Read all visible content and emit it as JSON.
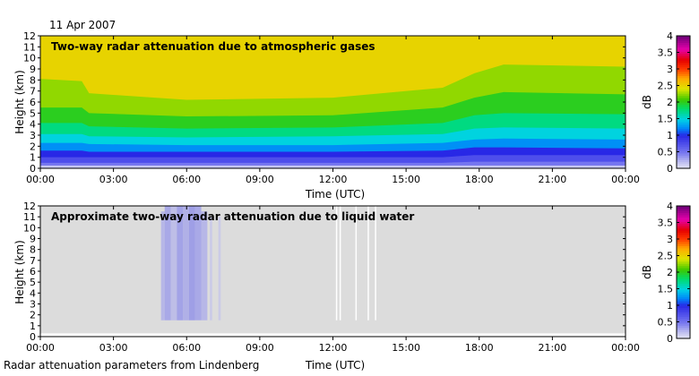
{
  "date": "11 Apr 2007",
  "footer": "Radar attenuation parameters from Lindenberg",
  "chart_data": [
    {
      "type": "heatmap",
      "title": "Two-way radar attenuation due to atmospheric gases",
      "xlabel": "Time (UTC)",
      "ylabel": "Height (km)",
      "x_ticks": [
        "00:00",
        "03:00",
        "06:00",
        "09:00",
        "12:00",
        "15:00",
        "18:00",
        "21:00",
        "00:00"
      ],
      "xlim_hours": [
        0,
        24
      ],
      "ylim": [
        0,
        12
      ],
      "y_ticks": [
        0,
        1,
        2,
        3,
        4,
        5,
        6,
        7,
        8,
        9,
        10,
        11,
        12
      ],
      "colorbar": {
        "label": "dB",
        "ticks": [
          "0",
          "0.5",
          "1",
          "1.5",
          "2",
          "2.5",
          "3",
          "3.5",
          "4"
        ],
        "range": [
          0,
          4
        ]
      },
      "contour_levels_db": [
        0.5,
        0.75,
        1.0,
        1.25,
        1.5,
        1.75,
        2.0,
        2.25
      ],
      "contour_heights_km": [
        {
          "time": 0,
          "heights": [
            0.5,
            1.0,
            1.6,
            2.3,
            3.1,
            4.1,
            5.5,
            8.1
          ]
        },
        {
          "time": 1.7,
          "heights": [
            0.5,
            1.0,
            1.6,
            2.3,
            3.1,
            4.1,
            5.5,
            7.9
          ]
        },
        {
          "time": 2,
          "heights": [
            0.5,
            1.0,
            1.5,
            2.2,
            2.9,
            3.8,
            5.0,
            6.8
          ]
        },
        {
          "time": 6,
          "heights": [
            0.5,
            1.0,
            1.5,
            2.1,
            2.8,
            3.6,
            4.7,
            6.2
          ]
        },
        {
          "time": 12,
          "heights": [
            0.5,
            1.0,
            1.5,
            2.1,
            2.9,
            3.7,
            4.8,
            6.4
          ]
        },
        {
          "time": 16.5,
          "heights": [
            0.5,
            1.0,
            1.6,
            2.3,
            3.1,
            4.1,
            5.5,
            7.3
          ]
        },
        {
          "time": 17.8,
          "heights": [
            0.6,
            1.2,
            1.9,
            2.6,
            3.6,
            4.8,
            6.4,
            8.6
          ]
        },
        {
          "time": 19,
          "heights": [
            0.6,
            1.2,
            1.9,
            2.7,
            3.7,
            5.0,
            6.9,
            9.4
          ]
        },
        {
          "time": 24,
          "heights": [
            0.6,
            1.2,
            1.8,
            2.6,
            3.6,
            4.9,
            6.7,
            9.2
          ]
        }
      ],
      "top_layer_db": 2.5
    },
    {
      "type": "heatmap",
      "title": "Approximate two-way radar attenuation due to liquid water",
      "xlabel": "Time (UTC)",
      "ylabel": "Height (km)",
      "x_ticks": [
        "00:00",
        "03:00",
        "06:00",
        "09:00",
        "12:00",
        "15:00",
        "18:00",
        "21:00",
        "00:00"
      ],
      "xlim_hours": [
        0,
        24
      ],
      "ylim": [
        0,
        12
      ],
      "y_ticks": [
        0,
        1,
        2,
        3,
        4,
        5,
        6,
        7,
        8,
        9,
        10,
        11,
        12
      ],
      "colorbar": {
        "label": "dB",
        "ticks": [
          "0",
          "0.5",
          "1",
          "1.5",
          "2",
          "2.5",
          "3",
          "3.5",
          "4"
        ],
        "range": [
          0,
          4
        ]
      },
      "background": "no data (grey)",
      "columns": [
        {
          "start": 4.95,
          "end": 5.1,
          "bottom": 1.5,
          "top": 11.5,
          "value_db": 0.35
        },
        {
          "start": 5.1,
          "end": 5.35,
          "bottom": 1.5,
          "top": 12,
          "value_db": 0.45
        },
        {
          "start": 5.35,
          "end": 5.6,
          "bottom": 1.5,
          "top": 12,
          "value_db": 0.3
        },
        {
          "start": 5.6,
          "end": 5.85,
          "bottom": 1.5,
          "top": 12,
          "value_db": 0.5
        },
        {
          "start": 5.85,
          "end": 6.1,
          "bottom": 1.5,
          "top": 12,
          "value_db": 0.4
        },
        {
          "start": 6.1,
          "end": 6.35,
          "bottom": 1.5,
          "top": 12,
          "value_db": 0.55
        },
        {
          "start": 6.35,
          "end": 6.6,
          "bottom": 1.5,
          "top": 12,
          "value_db": 0.45
        },
        {
          "start": 6.6,
          "end": 6.85,
          "bottom": 1.5,
          "top": 11.5,
          "value_db": 0.35
        },
        {
          "start": 6.95,
          "end": 7.05,
          "bottom": 1.5,
          "top": 11,
          "value_db": 0.2
        },
        {
          "start": 7.3,
          "end": 7.4,
          "bottom": 1.5,
          "top": 11,
          "value_db": 0.2
        }
      ],
      "missing_data_lines_hours": [
        12.15,
        12.3,
        12.95,
        13.45,
        13.75
      ]
    }
  ]
}
